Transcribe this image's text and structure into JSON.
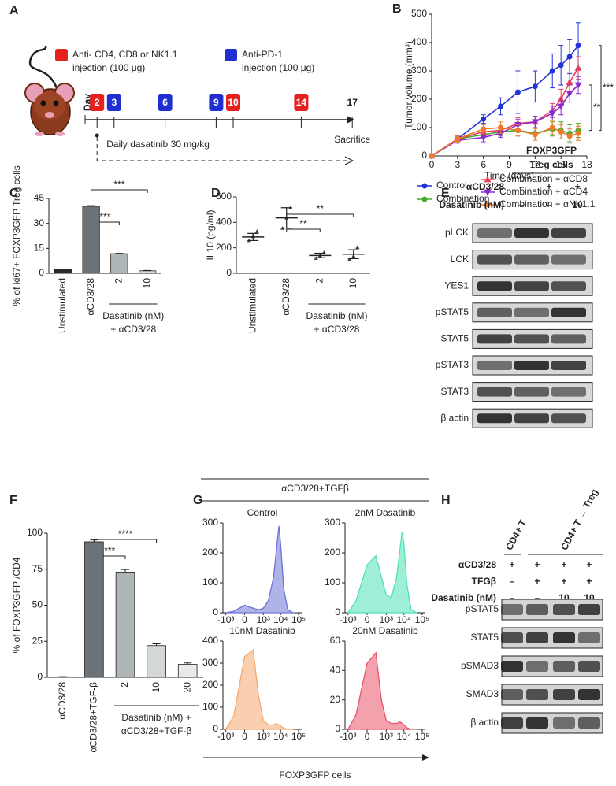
{
  "panel_labels": [
    "A",
    "B",
    "C",
    "D",
    "E",
    "F",
    "G",
    "H"
  ],
  "schematic": {
    "legend": [
      {
        "color": "#e5201e",
        "lines": [
          "Anti- CD4, CD8 or NK1.1",
          "injection (100 μg)"
        ]
      },
      {
        "color": "#1f2fd0",
        "lines": [
          "Anti-PD-1",
          "injection (100 μg)"
        ]
      }
    ],
    "axis_label": "Day",
    "days": [
      2,
      3,
      6,
      9,
      10,
      14,
      17
    ],
    "day_colors": [
      "#e5201e",
      "#1f2fd0",
      "#1f2fd0",
      "#1f2fd0",
      "#e5201e",
      "#e5201e",
      null
    ],
    "end_label": "Sacrifice",
    "treatment": "Daily dasatinib 30 mg/kg"
  },
  "chart_data": [
    {
      "type": "line",
      "xlabel": "Time (days)",
      "ylabel": "Tumor volume (mm³)",
      "x": [
        0,
        3,
        6,
        8,
        10,
        12,
        14,
        15,
        16,
        17
      ],
      "xlim": [
        0,
        18
      ],
      "xticks": [
        0,
        3,
        6,
        9,
        12,
        15,
        18
      ],
      "ylim": [
        0,
        500
      ],
      "yticks": [
        0,
        100,
        200,
        300,
        400,
        500
      ],
      "legend": "bottom",
      "series": [
        {
          "name": "Control",
          "color": "#2333d8",
          "marker": "circle",
          "values": [
            0,
            60,
            130,
            175,
            225,
            245,
            300,
            320,
            350,
            390
          ],
          "errors": [
            0,
            10,
            15,
            30,
            75,
            55,
            60,
            70,
            60,
            80
          ]
        },
        {
          "name": "Combination",
          "color": "#3fae2a",
          "marker": "circle",
          "values": [
            0,
            60,
            75,
            85,
            90,
            80,
            95,
            90,
            80,
            90
          ],
          "errors": [
            0,
            10,
            15,
            15,
            20,
            20,
            25,
            30,
            30,
            25
          ]
        },
        {
          "name": "Combination + αCD8",
          "color": "#e5405a",
          "marker": "triangle",
          "values": [
            0,
            60,
            85,
            90,
            115,
            120,
            160,
            200,
            260,
            310
          ],
          "errors": [
            0,
            10,
            15,
            15,
            20,
            20,
            25,
            35,
            35,
            40
          ]
        },
        {
          "name": "Combination + αCD4",
          "color": "#8a2bd0",
          "marker": "triangle-down",
          "values": [
            0,
            55,
            65,
            80,
            110,
            120,
            150,
            175,
            220,
            250
          ],
          "errors": [
            0,
            10,
            15,
            15,
            20,
            20,
            25,
            30,
            30,
            30
          ]
        },
        {
          "name": "Combination + αNK1.1",
          "color": "#f07a2a",
          "marker": "circle",
          "values": [
            0,
            60,
            95,
            100,
            90,
            75,
            100,
            85,
            70,
            80
          ],
          "errors": [
            0,
            10,
            15,
            20,
            20,
            20,
            25,
            25,
            25,
            25
          ]
        }
      ],
      "annotations": [
        {
          "text": "**",
          "from": "Combination + αCD4",
          "to": "Combination"
        },
        {
          "text": "***",
          "from": "Control",
          "to": "Combination"
        }
      ]
    },
    {
      "type": "bar",
      "ylabel": "% of ki67+ FOXP3GFP Treg cells",
      "categories": [
        "Unstimulated",
        "αCD3/28",
        "2",
        "10"
      ],
      "values": [
        2.3,
        40.3,
        11.8,
        1.5
      ],
      "errors": [
        0.3,
        0.4,
        0.2,
        0.2
      ],
      "colors": [
        "#2b2b2b",
        "#6b7278",
        "#aeb6b8",
        "#d8dcdc"
      ],
      "ylim": [
        0,
        45
      ],
      "yticks": [
        0,
        15,
        30,
        45
      ],
      "group": {
        "lines": [
          "Dasatinib (nM)",
          "+ αCD3/28"
        ],
        "from": "2",
        "to": "10"
      },
      "annotations": [
        {
          "text": "***",
          "from": "αCD3/28",
          "to": "2"
        },
        {
          "text": "***",
          "from": "αCD3/28",
          "to": "10"
        }
      ]
    },
    {
      "type": "dotplot",
      "ylabel": "IL10 (pg/ml)",
      "categories": [
        "Unstimulated",
        "αCD3/28",
        "2",
        "10"
      ],
      "points": [
        [
          258,
          290,
          330
        ],
        [
          355,
          435,
          515
        ],
        [
          118,
          140,
          163
        ],
        [
          110,
          135,
          205
        ]
      ],
      "means": [
        285,
        435,
        140,
        150
      ],
      "sd": [
        28,
        80,
        18,
        35
      ],
      "ylim": [
        0,
        600
      ],
      "yticks": [
        0,
        200,
        400,
        600
      ],
      "group": {
        "lines": [
          "Dasatinib (nM)",
          "+ αCD3/28"
        ],
        "from": "2",
        "to": "10"
      },
      "annotations": [
        {
          "text": "**",
          "from": "αCD3/28",
          "to": "2"
        },
        {
          "text": "**",
          "from": "αCD3/28",
          "to": "10"
        }
      ]
    },
    {
      "type": "bar",
      "ylabel": "% of FOXP3GFP /CD4",
      "categories": [
        "αCD3/28",
        "αCD3/28+TGF-β",
        "2",
        "10",
        "20"
      ],
      "values": [
        0.3,
        94,
        73,
        22,
        9
      ],
      "errors": [
        0.2,
        1.3,
        1.8,
        1.2,
        1
      ],
      "colors": [
        "#2b2b2b",
        "#6b7278",
        "#aeb6b8",
        "#d4d8d8",
        "#e8eaea"
      ],
      "ylim": [
        0,
        100
      ],
      "yticks": [
        0,
        25,
        50,
        75,
        100
      ],
      "group": {
        "lines": [
          "Dasatinib (nM) +",
          "αCD3/28+TGF-β"
        ],
        "from": "2",
        "to": "20"
      },
      "annotations": [
        {
          "text": "***",
          "from": "αCD3/28+TGF-β",
          "to": "2"
        },
        {
          "text": "****",
          "from": "αCD3/28+TGF-β",
          "to": "10"
        }
      ]
    },
    {
      "type": "area",
      "title": "Control",
      "color": "#6f74d6",
      "x": [
        -1000,
        -300,
        0,
        200,
        500,
        1000,
        2000,
        4000,
        6000,
        8000,
        10000,
        15000,
        25000,
        50000
      ],
      "values": [
        0,
        5,
        25,
        15,
        10,
        15,
        40,
        120,
        220,
        290,
        230,
        80,
        10,
        0
      ],
      "xlim": [
        -1500,
        150000
      ],
      "xticks": [
        {
          "value": -1000,
          "label": "-10³"
        },
        0,
        {
          "value": 1000,
          "label": "10³"
        },
        {
          "value": 10000,
          "label": "10⁴"
        },
        {
          "value": 100000,
          "label": "10⁵"
        }
      ],
      "ylim": [
        0,
        300
      ],
      "yticks": [
        0,
        100,
        200,
        300
      ]
    },
    {
      "type": "area",
      "title": "2nM Dasatinib",
      "color": "#4fe0b8",
      "x": [
        -1000,
        -300,
        0,
        200,
        500,
        1000,
        2000,
        4000,
        6000,
        8000,
        10000,
        15000,
        25000,
        50000
      ],
      "values": [
        0,
        40,
        160,
        190,
        120,
        60,
        50,
        120,
        210,
        270,
        230,
        90,
        10,
        0
      ],
      "xlim": [
        -1500,
        150000
      ],
      "xticks": [
        {
          "value": -1000,
          "label": "-10³"
        },
        0,
        {
          "value": 1000,
          "label": "10³"
        },
        {
          "value": 10000,
          "label": "10⁴"
        },
        {
          "value": 100000,
          "label": "10⁵"
        }
      ],
      "ylim": [
        0,
        300
      ],
      "yticks": [
        0,
        100,
        200,
        300
      ]
    },
    {
      "type": "area",
      "title": "10nM Dasatinib",
      "color": "#f4a870",
      "x": [
        -1000,
        -300,
        0,
        200,
        500,
        1000,
        2000,
        4000,
        6000,
        8000,
        10000,
        15000,
        25000,
        50000
      ],
      "values": [
        0,
        60,
        330,
        360,
        150,
        40,
        20,
        20,
        25,
        20,
        15,
        5,
        0,
        0
      ],
      "xlim": [
        -1500,
        150000
      ],
      "xticks": [
        {
          "value": -1000,
          "label": "-10³"
        },
        0,
        {
          "value": 1000,
          "label": "10³"
        },
        {
          "value": 10000,
          "label": "10⁴"
        },
        {
          "value": 100000,
          "label": "10⁵"
        }
      ],
      "ylim": [
        0,
        400
      ],
      "yticks": [
        0,
        100,
        200,
        300,
        400
      ]
    },
    {
      "type": "area",
      "title": "20nM Dasatinib",
      "color": "#e8546a",
      "x": [
        -1000,
        -300,
        0,
        200,
        500,
        1000,
        2000,
        4000,
        6000,
        8000,
        10000,
        15000,
        25000,
        50000
      ],
      "values": [
        0,
        10,
        45,
        52,
        20,
        6,
        4,
        4,
        5,
        4,
        3,
        1,
        0,
        0
      ],
      "xlim": [
        -1500,
        150000
      ],
      "xticks": [
        {
          "value": -1000,
          "label": "-10³"
        },
        0,
        {
          "value": 1000,
          "label": "10³"
        },
        {
          "value": 10000,
          "label": "10⁴"
        },
        {
          "value": 100000,
          "label": "10⁵"
        }
      ],
      "ylim": [
        0,
        60
      ],
      "yticks": [
        0,
        20,
        40,
        60
      ]
    }
  ],
  "histogram_panel": {
    "header": "αCD3/28+TGFβ",
    "xlabel": "FOXP3GFP cells"
  },
  "blot_e": {
    "header": [
      "FOXP3GFP",
      "Treg cells"
    ],
    "conditions": [
      {
        "label": "αCD3/28",
        "marks": [
          "–",
          "+",
          "+"
        ]
      },
      {
        "label": "Dasatinib (nM)",
        "marks": [
          "–",
          "–",
          "10"
        ]
      }
    ],
    "rows": [
      "pLCK",
      "LCK",
      "YES1",
      "pSTAT5",
      "STAT5",
      "pSTAT3",
      "STAT3",
      "β actin"
    ]
  },
  "blot_h": {
    "groups": [
      "CD4+ T",
      "CD4+ T → Treg"
    ],
    "conditions": [
      {
        "label": "αCD3/28",
        "marks": [
          "+",
          "+",
          "+",
          "+"
        ]
      },
      {
        "label": "TFGβ",
        "marks": [
          "–",
          "+",
          "+",
          "+"
        ]
      },
      {
        "label": "Dasatinib (nM)",
        "marks": [
          "–",
          "–",
          "10",
          "10"
        ]
      }
    ],
    "rows": [
      "pSTAT5",
      "STAT5",
      "pSMAD3",
      "SMAD3",
      "β actin"
    ]
  }
}
